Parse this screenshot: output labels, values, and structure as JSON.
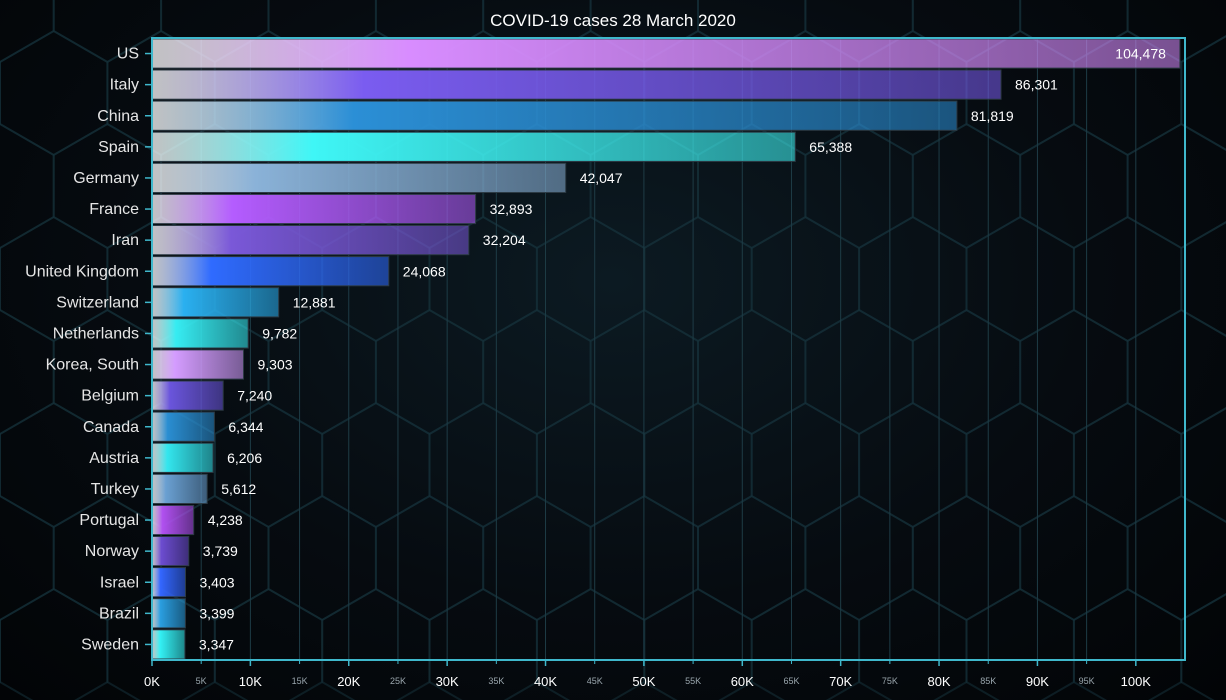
{
  "chart_data": {
    "type": "bar",
    "orientation": "horizontal",
    "title": "COVID-19 cases 28 March 2020",
    "categories": [
      "US",
      "Italy",
      "China",
      "Spain",
      "Germany",
      "France",
      "Iran",
      "United Kingdom",
      "Switzerland",
      "Netherlands",
      "Korea, South",
      "Belgium",
      "Canada",
      "Austria",
      "Turkey",
      "Portugal",
      "Norway",
      "Israel",
      "Brazil",
      "Sweden"
    ],
    "values": [
      104478,
      86301,
      81819,
      65388,
      42047,
      32893,
      32204,
      24068,
      12881,
      9782,
      9303,
      7240,
      6344,
      6206,
      5612,
      4238,
      3739,
      3403,
      3399,
      3347
    ],
    "value_labels": [
      "104,478",
      "86,301",
      "81,819",
      "65,388",
      "42,047",
      "32,893",
      "32,204",
      "24,068",
      "12,881",
      "9,782",
      "9,303",
      "7,240",
      "6,344",
      "6,206",
      "5,612",
      "4,238",
      "3,739",
      "3,403",
      "3,399",
      "3,347"
    ],
    "xlim": [
      0,
      105000
    ],
    "x_ticks_major": [
      {
        "value": 0,
        "label": "0K"
      },
      {
        "value": 10000,
        "label": "10K"
      },
      {
        "value": 20000,
        "label": "20K"
      },
      {
        "value": 30000,
        "label": "30K"
      },
      {
        "value": 40000,
        "label": "40K"
      },
      {
        "value": 50000,
        "label": "50K"
      },
      {
        "value": 60000,
        "label": "60K"
      },
      {
        "value": 70000,
        "label": "70K"
      },
      {
        "value": 80000,
        "label": "80K"
      },
      {
        "value": 90000,
        "label": "90K"
      },
      {
        "value": 100000,
        "label": "100K"
      }
    ],
    "x_ticks_minor": [
      {
        "value": 5000,
        "label": "5K"
      },
      {
        "value": 15000,
        "label": "15K"
      },
      {
        "value": 25000,
        "label": "25K"
      },
      {
        "value": 35000,
        "label": "35K"
      },
      {
        "value": 45000,
        "label": "45K"
      },
      {
        "value": 55000,
        "label": "55K"
      },
      {
        "value": 65000,
        "label": "65K"
      },
      {
        "value": 75000,
        "label": "75K"
      },
      {
        "value": 85000,
        "label": "85K"
      },
      {
        "value": 95000,
        "label": "95K"
      }
    ],
    "grid": true,
    "legend": "none",
    "bar_colors": [
      "#d88cff",
      "#7a5cf0",
      "#2b8fd6",
      "#3ff6f6",
      "#8ab2d8",
      "#b45cff",
      "#7a58d8",
      "#2f6bff",
      "#2ab0f0",
      "#36ecf2",
      "#d49cff",
      "#6a55dc",
      "#2a8ed2",
      "#33e6ee",
      "#6aa0d2",
      "#b050f0",
      "#6c4cd0",
      "#3366ff",
      "#2a9ee0",
      "#33f0f4"
    ],
    "axis_color": "#3fb8cc",
    "grid_color": "#1e3c46"
  }
}
